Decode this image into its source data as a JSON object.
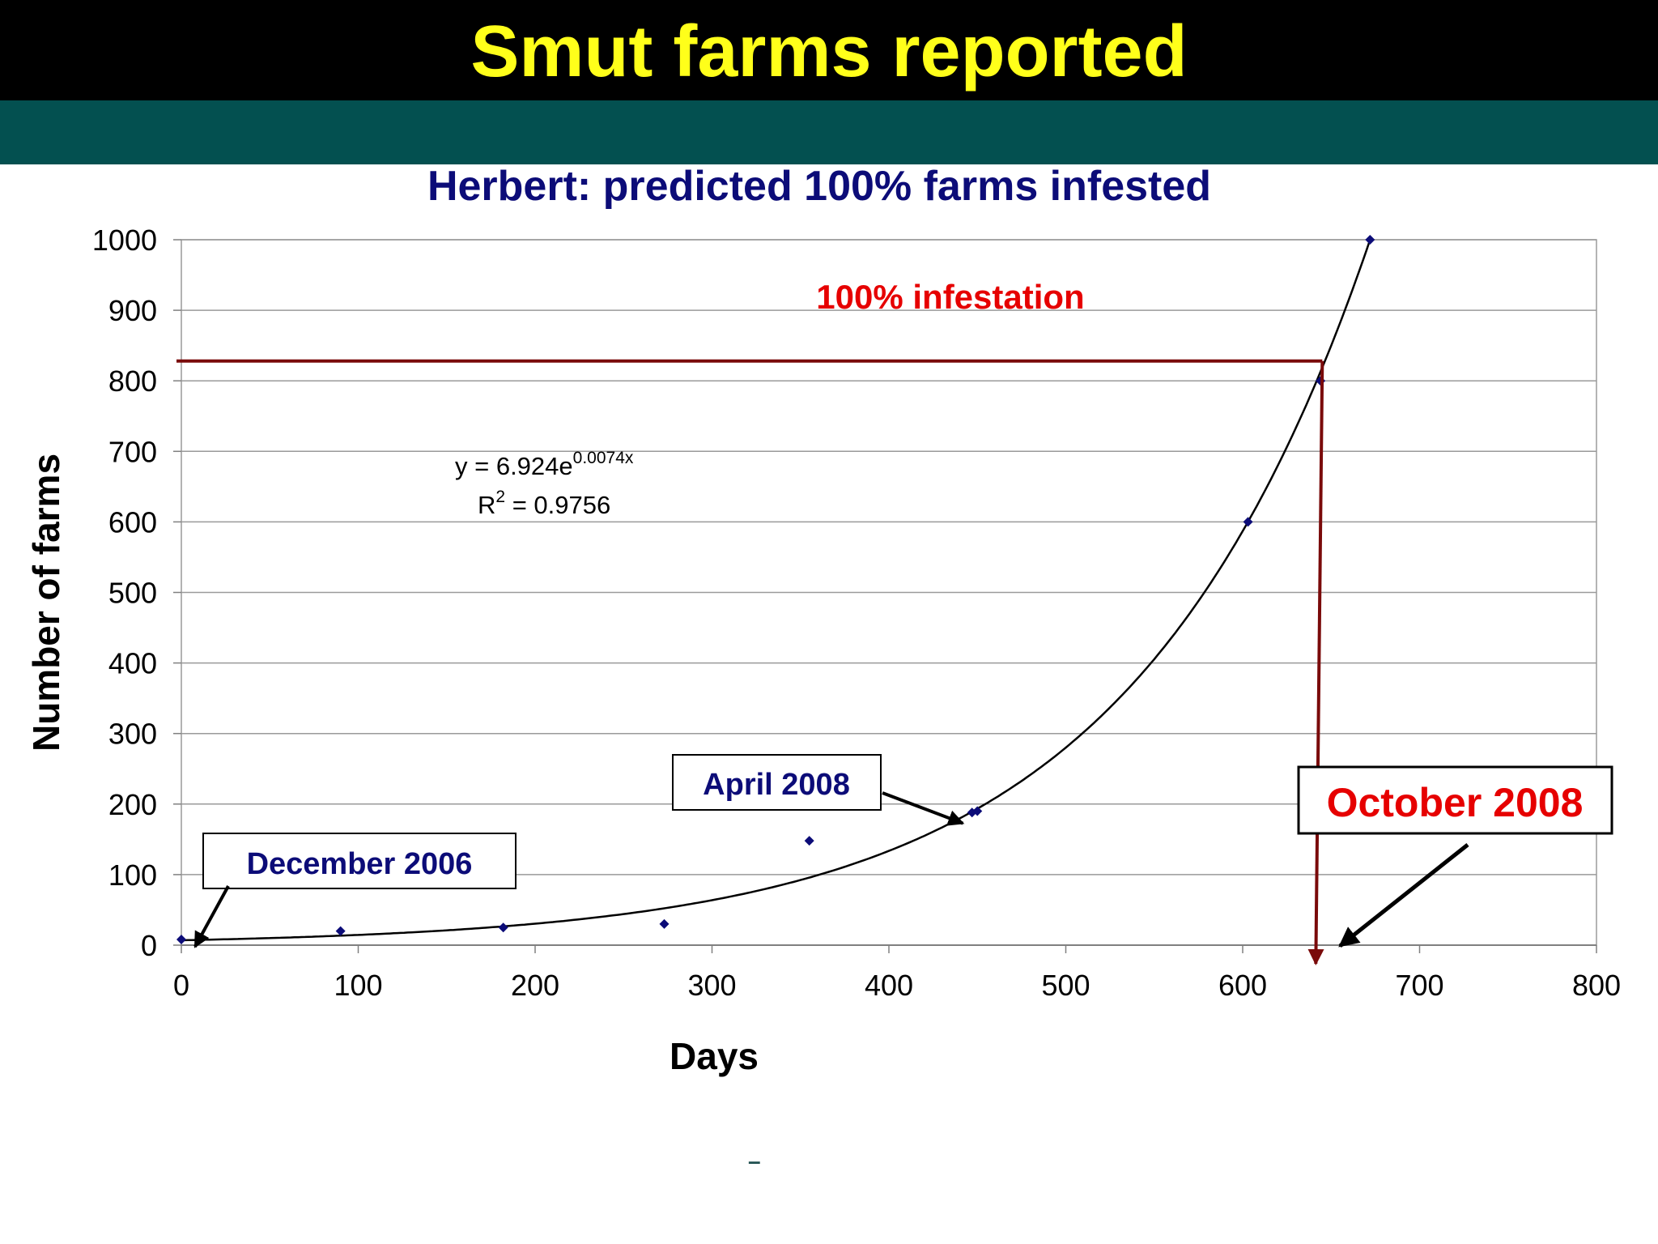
{
  "slide": {
    "title": "Smut farms reported",
    "footer_mark": "–"
  },
  "colors": {
    "title_bar": "#000000",
    "title_text": "#ffff1a",
    "band": "#035050",
    "chart_title": "#0c0c78",
    "annotation_blue": "#0c0c78",
    "annotation_red": "#e60000",
    "threshold_line": "#7a0a0a",
    "points": "#0c0c78"
  },
  "chart_data": {
    "type": "scatter",
    "title": "Herbert: predicted 100% farms infested",
    "xlabel": "Days",
    "ylabel": "Number of farms",
    "xlim": [
      0,
      800
    ],
    "ylim": [
      0,
      1000
    ],
    "x_ticks": [
      0,
      100,
      200,
      300,
      400,
      500,
      600,
      700,
      800
    ],
    "y_ticks": [
      0,
      100,
      200,
      300,
      400,
      500,
      600,
      700,
      800,
      900,
      1000
    ],
    "grid": "horizontal",
    "series": [
      {
        "points": [
          {
            "x": 0,
            "y": 8
          },
          {
            "x": 90,
            "y": 20
          },
          {
            "x": 182,
            "y": 25
          },
          {
            "x": 273,
            "y": 30
          },
          {
            "x": 355,
            "y": 148
          },
          {
            "x": 447,
            "y": 188
          },
          {
            "x": 450,
            "y": 190
          },
          {
            "x": 603,
            "y": 600
          },
          {
            "x": 644,
            "y": 800
          },
          {
            "x": 672,
            "y": 1000
          }
        ]
      }
    ],
    "trendline": {
      "type": "exponential",
      "a": 6.924,
      "b": 0.0074,
      "equation_base": "y = 6.924e",
      "equation_exp": "0.0074x",
      "r2_prefix": "R",
      "r2_sup": "2",
      "r2_value": " = 0.9756"
    },
    "threshold": {
      "y": 828,
      "x_cross": 645,
      "label": "100% infestation"
    },
    "annotations": [
      {
        "id": "dec2006",
        "text": "December 2006",
        "target_x": 5,
        "target_y": 0
      },
      {
        "id": "apr2008",
        "text": "April 2008",
        "target_x": 440,
        "target_y": 175
      },
      {
        "id": "oct2008",
        "text": "October 2008",
        "target_x": 655,
        "target_y": 0
      }
    ]
  }
}
